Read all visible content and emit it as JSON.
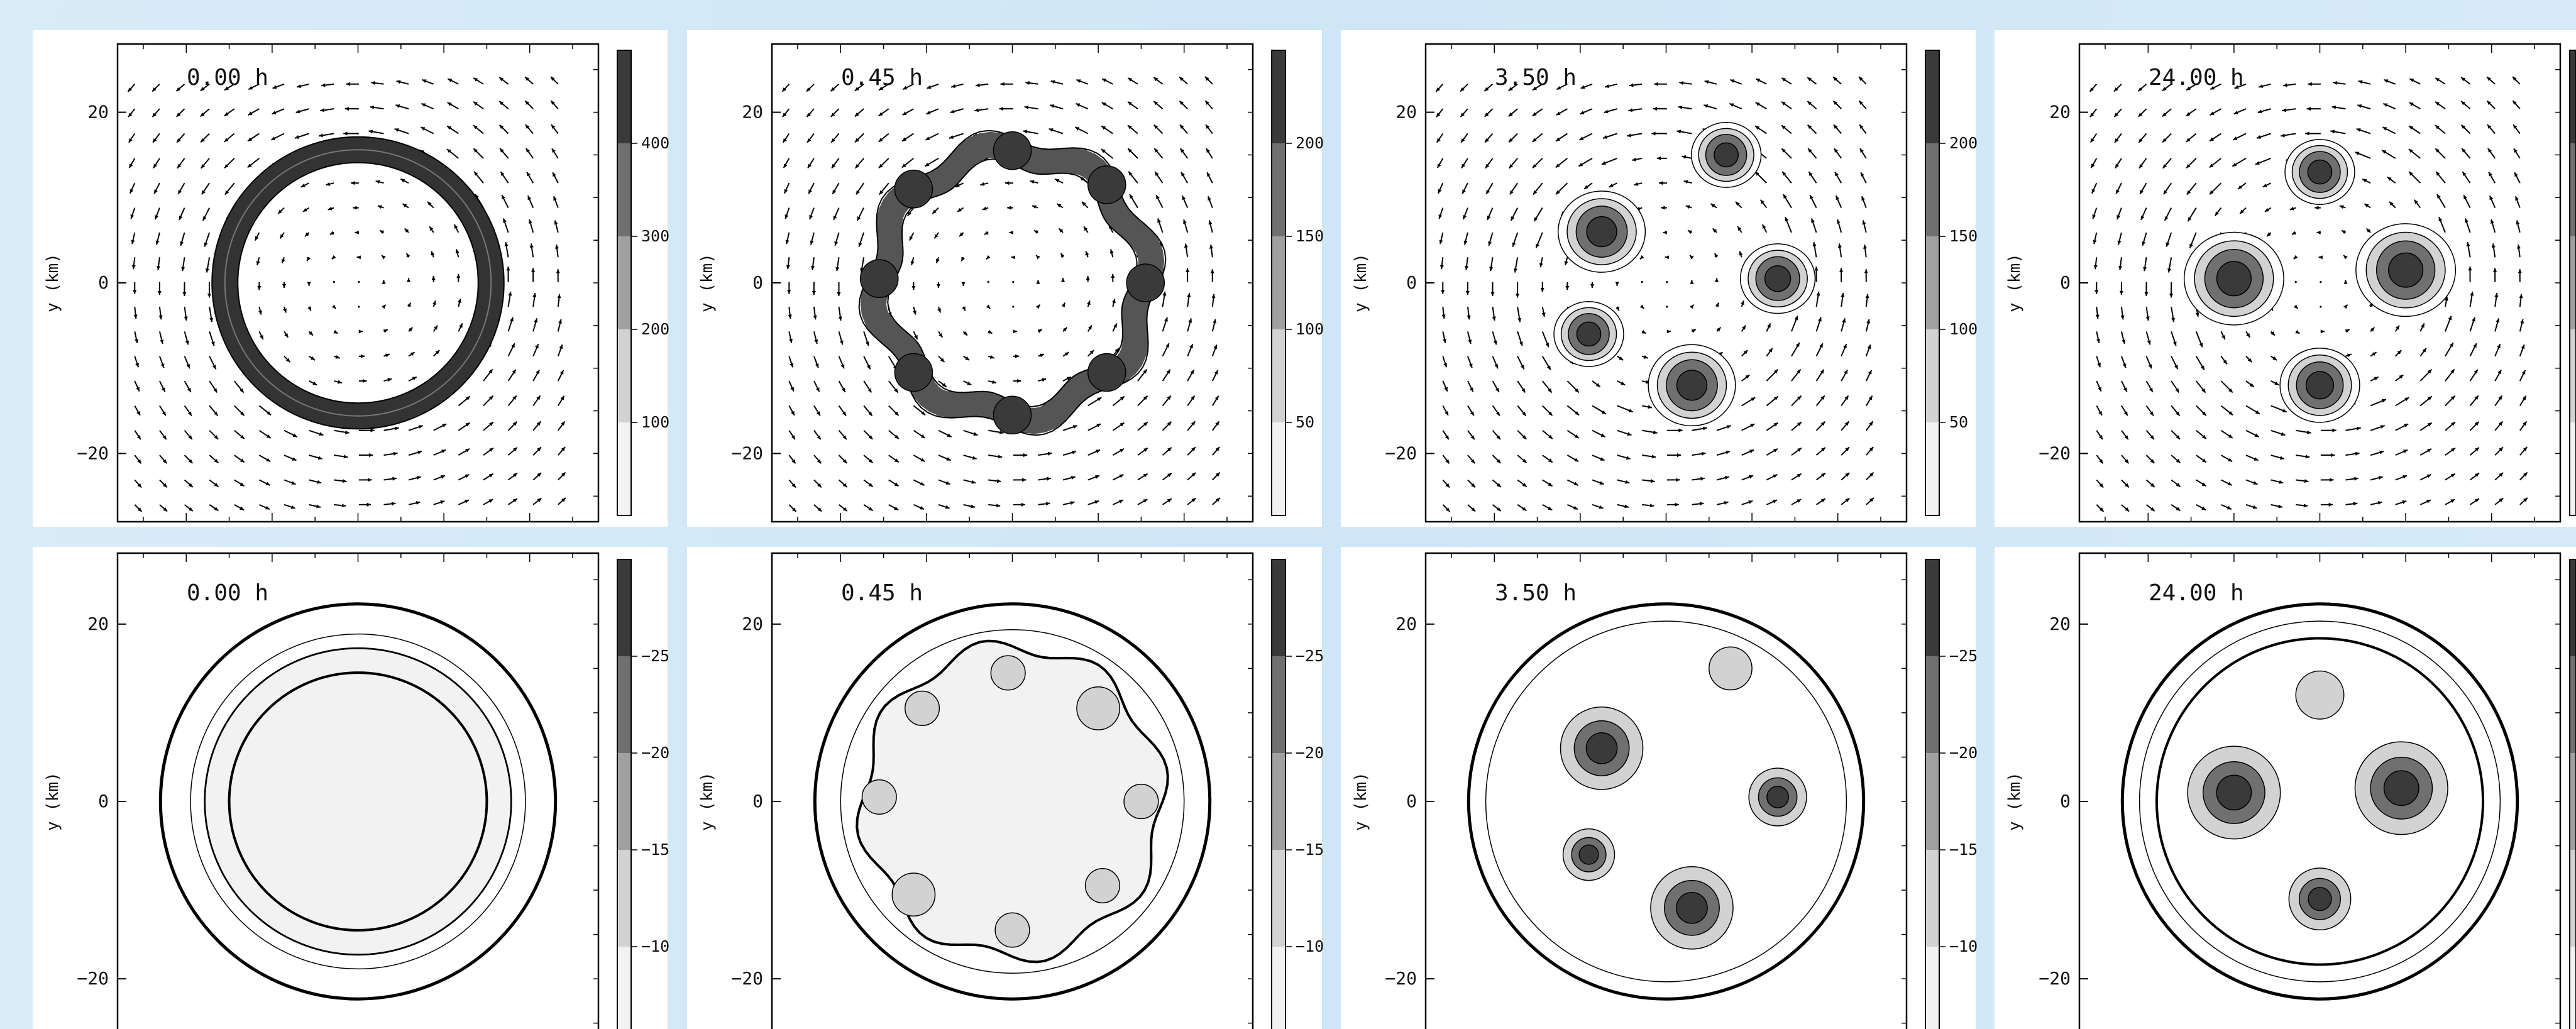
{
  "chart_data": [
    {
      "type": "contour",
      "row": "top",
      "col": 0,
      "time_label": "0.00 h",
      "ylabel": "y (km)",
      "yticks": [
        -20,
        0,
        20
      ],
      "xlim": [
        -28,
        28
      ],
      "ylim": [
        -28,
        28
      ],
      "colorbar": {
        "tick_labels": [
          "100",
          "200",
          "300",
          "400"
        ],
        "ticks": [
          100,
          200,
          300,
          400
        ],
        "range": [
          0,
          500
        ]
      },
      "features": [
        {
          "shape": "ring",
          "x": 0,
          "y": 0,
          "r": 15.5,
          "width": 3.0
        }
      ],
      "vectors": "cyclonic"
    },
    {
      "type": "contour",
      "row": "top",
      "col": 1,
      "time_label": "0.45 h",
      "ylabel": "y (km)",
      "yticks": [
        -20,
        0,
        20
      ],
      "xlim": [
        -28,
        28
      ],
      "ylim": [
        -28,
        28
      ],
      "colorbar": {
        "tick_labels": [
          "50",
          "100",
          "150",
          "200"
        ],
        "ticks": [
          50,
          100,
          150,
          200
        ],
        "range": [
          0,
          250
        ]
      },
      "features": [
        {
          "shape": "wavy-ring",
          "x": 0,
          "y": 0,
          "r": 15.5,
          "width": 3.0,
          "lobes": 8
        },
        {
          "shape": "blob",
          "x": -15.5,
          "y": 0.5,
          "r": 2.2
        },
        {
          "shape": "blob",
          "x": -11.5,
          "y": -10.5,
          "r": 2.2
        },
        {
          "shape": "blob",
          "x": -11.5,
          "y": 11,
          "r": 2.2
        },
        {
          "shape": "blob",
          "x": 0,
          "y": 15.5,
          "r": 2.2
        },
        {
          "shape": "blob",
          "x": 11,
          "y": 11.5,
          "r": 2.2
        },
        {
          "shape": "blob",
          "x": 15.5,
          "y": 0,
          "r": 2.2
        },
        {
          "shape": "blob",
          "x": 11,
          "y": -10.5,
          "r": 2.2
        },
        {
          "shape": "blob",
          "x": 0,
          "y": -15.5,
          "r": 2.2
        }
      ],
      "vectors": "cyclonic"
    },
    {
      "type": "contour",
      "row": "top",
      "col": 2,
      "time_label": "3.50 h",
      "ylabel": "y (km)",
      "yticks": [
        -20,
        0,
        20
      ],
      "xlim": [
        -28,
        28
      ],
      "ylim": [
        -28,
        28
      ],
      "colorbar": {
        "tick_labels": [
          "50",
          "100",
          "150",
          "200"
        ],
        "ticks": [
          50,
          100,
          150,
          200
        ],
        "range": [
          0,
          250
        ]
      },
      "features": [
        {
          "shape": "vortex",
          "x": 7,
          "y": 15,
          "r": 2.8
        },
        {
          "shape": "vortex",
          "x": -7.5,
          "y": 6,
          "r": 3.5
        },
        {
          "shape": "vortex",
          "x": 13,
          "y": 0.5,
          "r": 3.0
        },
        {
          "shape": "vortex",
          "x": -9,
          "y": -6,
          "r": 2.8
        },
        {
          "shape": "vortex",
          "x": 3,
          "y": -12,
          "r": 3.5
        }
      ],
      "vectors": "cyclonic"
    },
    {
      "type": "contour",
      "row": "top",
      "col": 3,
      "time_label": "24.00 h",
      "ylabel": "y (km)",
      "yticks": [
        -20,
        0,
        20
      ],
      "xlim": [
        -28,
        28
      ],
      "ylim": [
        -28,
        28
      ],
      "colorbar": {
        "tick_labels": [],
        "ticks": [],
        "range": [
          0,
          250
        ]
      },
      "features": [
        {
          "shape": "vortex",
          "x": 0,
          "y": 13,
          "r": 2.8
        },
        {
          "shape": "vortex",
          "x": -10,
          "y": 0.5,
          "r": 4.0
        },
        {
          "shape": "vortex",
          "x": 10,
          "y": 1.5,
          "r": 4.0
        },
        {
          "shape": "vortex",
          "x": 0,
          "y": -12,
          "r": 3.2
        }
      ],
      "vectors": "cyclonic"
    },
    {
      "type": "contour",
      "row": "bottom",
      "col": 0,
      "time_label": "0.00 h",
      "ylabel": "y (km)",
      "yticks": [
        -20,
        0,
        20
      ],
      "xlim": [
        -28,
        28
      ],
      "ylim": [
        -28,
        28
      ],
      "colorbar": {
        "tick_labels": [
          "-25",
          "-20",
          "-15",
          "-10"
        ],
        "ticks": [
          -25,
          -20,
          -15,
          -10
        ],
        "range": [
          -5,
          -30
        ]
      },
      "rings": [
        23,
        19.5,
        17.8,
        15
      ],
      "features": [
        {
          "shape": "disk",
          "x": 0,
          "y": 0,
          "r": 17.8
        }
      ],
      "vectors": "none"
    },
    {
      "type": "contour",
      "row": "bottom",
      "col": 1,
      "time_label": "0.45 h",
      "ylabel": "y (km)",
      "yticks": [
        -20,
        0,
        20
      ],
      "xlim": [
        -28,
        28
      ],
      "ylim": [
        -28,
        28
      ],
      "colorbar": {
        "tick_labels": [
          "-25",
          "-20",
          "-15",
          "-10"
        ],
        "ticks": [
          -25,
          -20,
          -15,
          -10
        ],
        "range": [
          -5,
          -30
        ]
      },
      "rings": [
        23,
        20
      ],
      "features": [
        {
          "shape": "wavy-disk",
          "x": 0,
          "y": 0,
          "r": 17.5,
          "lobes": 8
        },
        {
          "shape": "blob",
          "x": -15.5,
          "y": 0.5,
          "r": 2.0
        },
        {
          "shape": "blob",
          "x": -11.5,
          "y": -10.5,
          "r": 2.5
        },
        {
          "shape": "blob",
          "x": -10.5,
          "y": 10.5,
          "r": 2.0
        },
        {
          "shape": "blob",
          "x": -0.5,
          "y": 14.5,
          "r": 2.0
        },
        {
          "shape": "blob",
          "x": 10,
          "y": 10.5,
          "r": 2.5
        },
        {
          "shape": "blob",
          "x": 15,
          "y": 0,
          "r": 2.0
        },
        {
          "shape": "blob",
          "x": 10.5,
          "y": -9.5,
          "r": 2.0
        },
        {
          "shape": "blob",
          "x": 0,
          "y": -14.5,
          "r": 2.0
        }
      ],
      "vectors": "none"
    },
    {
      "type": "contour",
      "row": "bottom",
      "col": 2,
      "time_label": "3.50 h",
      "ylabel": "y (km)",
      "yticks": [
        -20,
        0,
        20
      ],
      "xlim": [
        -28,
        28
      ],
      "ylim": [
        -28,
        28
      ],
      "colorbar": {
        "tick_labels": [
          "-25",
          "-20",
          "-15",
          "-10"
        ],
        "ticks": [
          -25,
          -20,
          -15,
          -10
        ],
        "range": [
          -5,
          -30
        ]
      },
      "rings": [
        23,
        21
      ],
      "features": [
        {
          "shape": "blob",
          "x": 7.5,
          "y": 15,
          "r": 2.5
        },
        {
          "shape": "vortex",
          "x": -7.5,
          "y": 6,
          "r": 4.0
        },
        {
          "shape": "vortex",
          "x": 13,
          "y": 0.5,
          "r": 2.8
        },
        {
          "shape": "vortex",
          "x": -9,
          "y": -6,
          "r": 2.5
        },
        {
          "shape": "vortex",
          "x": 3,
          "y": -12,
          "r": 4.0
        }
      ],
      "vectors": "none"
    },
    {
      "type": "contour",
      "row": "bottom",
      "col": 3,
      "time_label": "24.00 h",
      "ylabel": "y (km)",
      "yticks": [
        -20,
        0,
        20
      ],
      "xlim": [
        -28,
        28
      ],
      "ylim": [
        -28,
        28
      ],
      "colorbar": {
        "tick_labels": [],
        "ticks": [],
        "range": [
          -5,
          -30
        ]
      },
      "rings": [
        23,
        21,
        19
      ],
      "features": [
        {
          "shape": "blob",
          "x": 0,
          "y": 12,
          "r": 2.8
        },
        {
          "shape": "vortex",
          "x": -10,
          "y": 1,
          "r": 4.5
        },
        {
          "shape": "vortex",
          "x": 9.5,
          "y": 1.5,
          "r": 4.5
        },
        {
          "shape": "vortex",
          "x": 0,
          "y": -11,
          "r": 3.0
        }
      ],
      "vectors": "none"
    }
  ]
}
